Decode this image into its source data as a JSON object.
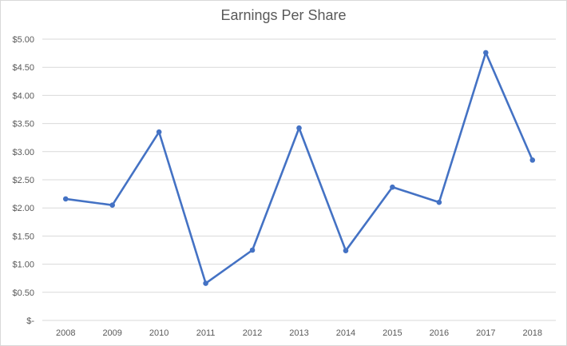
{
  "chart_data": {
    "type": "line",
    "title": "Earnings Per Share",
    "xlabel": "",
    "ylabel": "",
    "categories": [
      "2008",
      "2009",
      "2010",
      "2011",
      "2012",
      "2013",
      "2014",
      "2015",
      "2016",
      "2017",
      "2018"
    ],
    "series": [
      {
        "values": [
          2.16,
          2.05,
          3.35,
          0.66,
          1.25,
          3.42,
          1.24,
          2.37,
          2.1,
          4.76,
          2.85
        ]
      }
    ],
    "ylim": [
      0,
      5
    ],
    "y_ticks": [
      0,
      0.5,
      1,
      1.5,
      2,
      2.5,
      3,
      3.5,
      4,
      4.5,
      5
    ],
    "y_tick_labels": [
      "$-",
      "$0.50",
      "$1.00",
      "$1.50",
      "$2.00",
      "$2.50",
      "$3.00",
      "$3.50",
      "$4.00",
      "$4.50",
      "$5.00"
    ],
    "grid": true,
    "legend": "none",
    "colors": {
      "line": "#4472c4",
      "grid": "#d9d9d9",
      "text": "#595959"
    }
  }
}
